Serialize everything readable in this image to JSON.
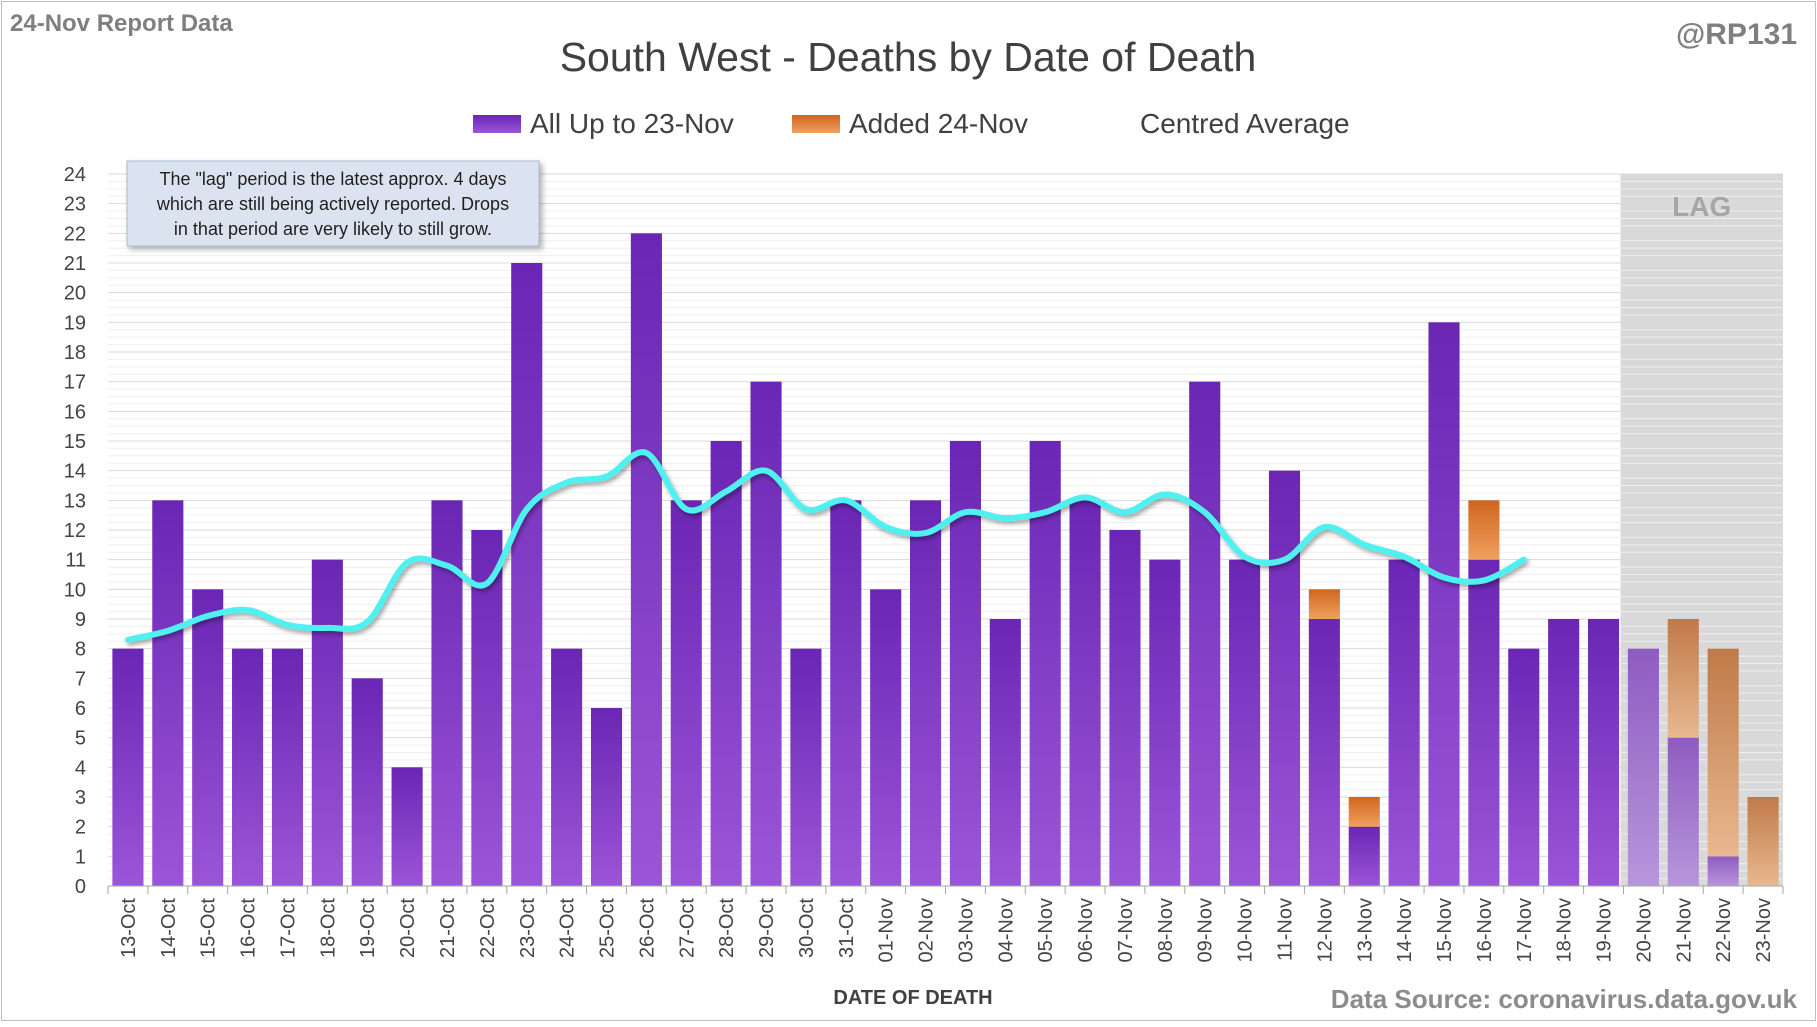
{
  "header": {
    "report_label": "24-Nov Report Data",
    "handle": "@RP131"
  },
  "footer": {
    "source": "Data Source: coronavirus.data.gov.uk"
  },
  "annotation": {
    "lines": [
      "The \"lag\" period is the latest approx. 4 days",
      "which are still being actively reported. Drops",
      "in that period are very likely to still grow."
    ]
  },
  "lag_label": "LAG",
  "colors": {
    "base_bar": "#7a2ec4",
    "added_bar": "#e07a30",
    "average_line": "#4ff0f0",
    "lag_shade": "#d9d9d9",
    "title_text": "#404040",
    "annotation_fill": "#dce3f0"
  },
  "chart_data": {
    "type": "bar",
    "title": "South West - Deaths by Date of Death",
    "xlabel": "DATE OF DEATH",
    "ylabel": "",
    "ylim": [
      0,
      24
    ],
    "y_ticks": [
      0,
      1,
      2,
      3,
      4,
      5,
      6,
      7,
      8,
      9,
      10,
      11,
      12,
      13,
      14,
      15,
      16,
      17,
      18,
      19,
      20,
      21,
      22,
      23,
      24
    ],
    "grid": true,
    "legend_position": "top",
    "stacked": true,
    "categories": [
      "13-Oct",
      "14-Oct",
      "15-Oct",
      "16-Oct",
      "17-Oct",
      "18-Oct",
      "19-Oct",
      "20-Oct",
      "21-Oct",
      "22-Oct",
      "23-Oct",
      "24-Oct",
      "25-Oct",
      "26-Oct",
      "27-Oct",
      "28-Oct",
      "29-Oct",
      "30-Oct",
      "31-Oct",
      "01-Nov",
      "02-Nov",
      "03-Nov",
      "04-Nov",
      "05-Nov",
      "06-Nov",
      "07-Nov",
      "08-Nov",
      "09-Nov",
      "10-Nov",
      "11-Nov",
      "12-Nov",
      "13-Nov",
      "14-Nov",
      "15-Nov",
      "16-Nov",
      "17-Nov",
      "18-Nov",
      "19-Nov",
      "20-Nov",
      "21-Nov",
      "22-Nov",
      "23-Nov"
    ],
    "series": [
      {
        "name": "All Up to 23-Nov",
        "kind": "bar",
        "values": [
          8,
          13,
          10,
          8,
          8,
          11,
          7,
          4,
          13,
          12,
          21,
          8,
          6,
          22,
          13,
          15,
          17,
          8,
          13,
          10,
          13,
          15,
          9,
          15,
          13,
          12,
          11,
          17,
          11,
          14,
          9,
          2,
          11,
          19,
          11,
          8,
          9,
          9,
          8,
          5,
          1,
          0
        ]
      },
      {
        "name": "Added 24-Nov",
        "kind": "bar",
        "values": [
          0,
          0,
          0,
          0,
          0,
          0,
          0,
          0,
          0,
          0,
          0,
          0,
          0,
          0,
          0,
          0,
          0,
          0,
          0,
          0,
          0,
          0,
          0,
          0,
          0,
          0,
          0,
          0,
          0,
          0,
          1,
          1,
          0,
          0,
          2,
          0,
          0,
          0,
          0,
          4,
          7,
          3
        ]
      },
      {
        "name": "Centred Average",
        "kind": "line",
        "values": [
          8.3,
          8.6,
          9.1,
          9.3,
          8.8,
          8.7,
          8.9,
          10.9,
          10.8,
          10.2,
          12.7,
          13.6,
          13.8,
          14.6,
          12.7,
          13.3,
          14.0,
          12.7,
          13.0,
          12.1,
          11.9,
          12.6,
          12.4,
          12.6,
          13.1,
          12.6,
          13.2,
          12.6,
          11.1,
          11.0,
          12.1,
          11.5,
          11.1,
          10.4,
          10.3,
          11.0,
          null,
          null,
          null,
          null,
          null,
          null
        ]
      }
    ],
    "lag_categories": [
      "20-Nov",
      "21-Nov",
      "22-Nov",
      "23-Nov"
    ]
  }
}
